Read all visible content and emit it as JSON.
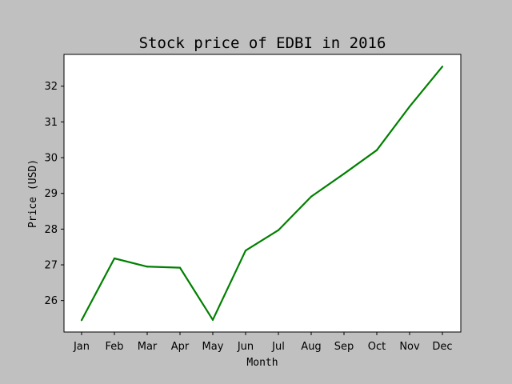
{
  "chart_data": {
    "type": "line",
    "title": "Stock price of EDBI in 2016",
    "xlabel": "Month",
    "ylabel": "Price (USD)",
    "categories": [
      "Jan",
      "Feb",
      "Mar",
      "Apr",
      "May",
      "Jun",
      "Jul",
      "Aug",
      "Sep",
      "Oct",
      "Nov",
      "Dec"
    ],
    "series": [
      {
        "values": [
          25.45,
          27.18,
          26.95,
          26.92,
          25.46,
          27.4,
          27.97,
          28.91,
          29.55,
          30.21,
          31.43,
          32.55
        ]
      }
    ],
    "yticks": [
      26,
      27,
      28,
      29,
      30,
      31,
      32
    ],
    "ylim": [
      25.12,
      32.89
    ],
    "grid": false,
    "line_color": "#008000",
    "background_color": "#c0c0c0",
    "plot_background_color": "#ffffff"
  }
}
